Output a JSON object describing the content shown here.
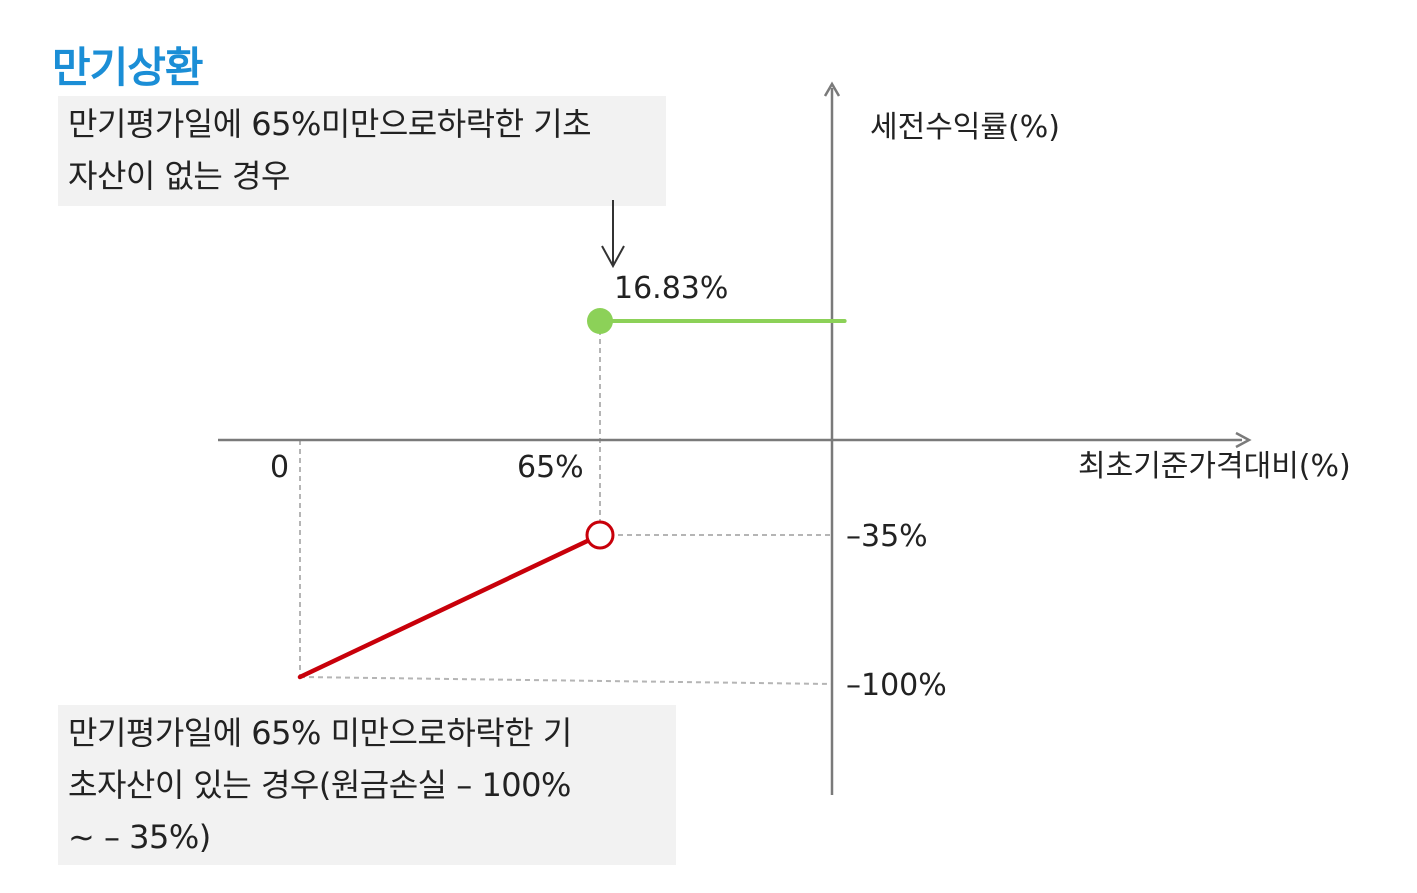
{
  "title": "만기상환",
  "colors": {
    "title": "#1b8ed6",
    "positive_line": "#8cd158",
    "negative_line": "#c8000a",
    "axis": "#7a7a7a",
    "guide": "#b5b5b5",
    "callout_bg": "#f2f2f2"
  },
  "callouts": {
    "top": {
      "lines": [
        "만기평가일에 65%미만으로하락한 기초",
        "자산이 없는 경우"
      ]
    },
    "bottom": {
      "lines": [
        "만기평가일에 65% 미만으로하락한 기",
        "초자산이 있는 경우(원금손실 – 100%",
        "∼ – 35%)"
      ]
    }
  },
  "chart_data": {
    "type": "line",
    "ylabel": "세전수익률(%)",
    "xlabel": "최초기준가격대비(%)",
    "x_tick_labels": [
      "0",
      "65%"
    ],
    "y_tick_labels": [
      "–35%",
      "–100%"
    ],
    "data_labels": [
      "16.83%"
    ],
    "series": [
      {
        "segment": "upper",
        "color": "#8cd158",
        "x": [
          65,
          118
        ],
        "y": [
          16.83,
          16.83
        ],
        "start_marker": "filled"
      },
      {
        "segment": "lower",
        "color": "#c8000a",
        "x": [
          0,
          65
        ],
        "y": [
          -100,
          -35
        ],
        "end_marker": "open"
      }
    ],
    "xlim": [
      0,
      118
    ],
    "grid": false,
    "legend": "none"
  }
}
